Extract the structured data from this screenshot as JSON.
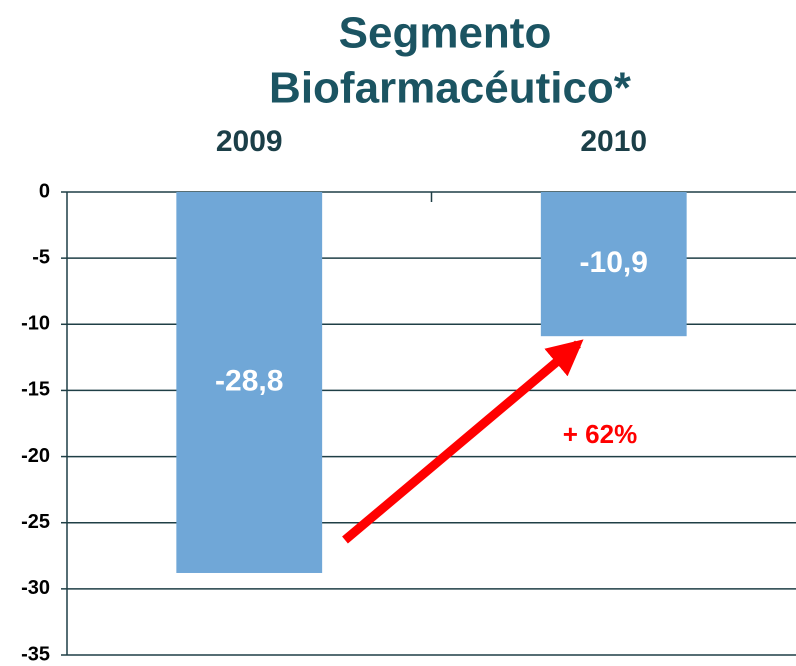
{
  "chart_data": {
    "type": "bar",
    "title": [
      "Segmento",
      "Biofarmacéutico*"
    ],
    "categories": [
      "2009",
      "2010"
    ],
    "values": [
      -28.8,
      -10.9
    ],
    "value_labels": [
      "-28,8",
      "-10,9"
    ],
    "color": "#70a7d7",
    "ylim": [
      -35,
      0
    ],
    "yticks": [
      0,
      -5,
      -10,
      -15,
      -20,
      -25,
      -30,
      -35
    ],
    "grid": true,
    "annotations": [
      "+ 62%"
    ]
  }
}
